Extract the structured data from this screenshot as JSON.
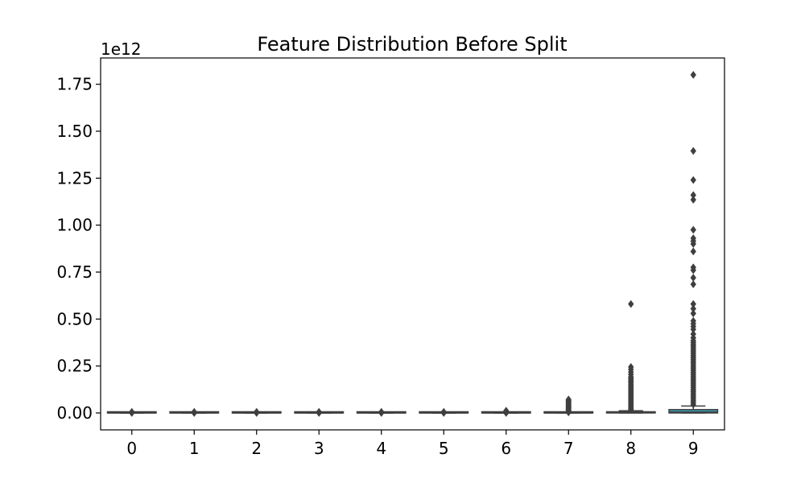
{
  "chart_data": {
    "type": "box",
    "title": "Feature Distribution Before Split",
    "xlabel": "",
    "ylabel": "",
    "y_offset_label": "1e12",
    "y_scale": 1000000000000.0,
    "categories": [
      "0",
      "1",
      "2",
      "3",
      "4",
      "5",
      "6",
      "7",
      "8",
      "9"
    ],
    "ylim": [
      -0.09,
      1.89
    ],
    "yticks": [
      0.0,
      0.25,
      0.5,
      0.75,
      1.0,
      1.25,
      1.5,
      1.75
    ],
    "ytick_labels": [
      "0.00",
      "0.25",
      "0.50",
      "0.75",
      "1.00",
      "1.25",
      "1.50",
      "1.75"
    ],
    "grid": false,
    "legend": "none",
    "colors": {
      "box_fill": "#3b9ab2",
      "box_edge": "#3f3f3f",
      "outlier": "#3f3f3f"
    },
    "boxes": [
      {
        "category": "0",
        "q1": 0.0,
        "median": 0.0,
        "q3": 0.0,
        "whisker_low": 0.0,
        "whisker_high": 0.0,
        "outliers": [
          0.0,
          0.003,
          0.006
        ]
      },
      {
        "category": "1",
        "q1": 0.0,
        "median": 0.0,
        "q3": 0.0,
        "whisker_low": 0.0,
        "whisker_high": 0.0,
        "outliers": [
          0.0,
          0.003,
          0.006
        ]
      },
      {
        "category": "2",
        "q1": 0.0,
        "median": 0.0,
        "q3": 0.0,
        "whisker_low": 0.0,
        "whisker_high": 0.0,
        "outliers": [
          0.0,
          0.003,
          0.006
        ]
      },
      {
        "category": "3",
        "q1": 0.0,
        "median": 0.0,
        "q3": 0.0,
        "whisker_low": 0.0,
        "whisker_high": 0.0,
        "outliers": [
          0.0,
          0.003,
          0.006
        ]
      },
      {
        "category": "4",
        "q1": 0.0,
        "median": 0.0,
        "q3": 0.0,
        "whisker_low": 0.0,
        "whisker_high": 0.0,
        "outliers": [
          0.0,
          0.003,
          0.006
        ]
      },
      {
        "category": "5",
        "q1": 0.0,
        "median": 0.0,
        "q3": 0.0,
        "whisker_low": 0.0,
        "whisker_high": 0.0,
        "outliers": [
          0.0,
          0.003,
          0.006
        ]
      },
      {
        "category": "6",
        "q1": 0.0,
        "median": 0.0,
        "q3": 0.0,
        "whisker_low": 0.0,
        "whisker_high": 0.0,
        "outliers": [
          0.0,
          0.004,
          0.008,
          0.012
        ]
      },
      {
        "category": "7",
        "q1": 0.0,
        "median": 0.0,
        "q3": 0.0,
        "whisker_low": 0.0,
        "whisker_high": 0.001,
        "outliers": [
          0.003,
          0.006,
          0.01,
          0.014,
          0.018,
          0.022,
          0.027,
          0.032,
          0.037,
          0.042,
          0.047,
          0.052,
          0.057,
          0.062,
          0.067,
          0.072
        ]
      },
      {
        "category": "8",
        "q1": 0.0,
        "median": 0.002,
        "q3": 0.005,
        "whisker_low": 0.0,
        "whisker_high": 0.012,
        "outliers": [
          0.018,
          0.025,
          0.032,
          0.04,
          0.048,
          0.056,
          0.064,
          0.072,
          0.08,
          0.088,
          0.096,
          0.104,
          0.112,
          0.12,
          0.128,
          0.136,
          0.144,
          0.152,
          0.16,
          0.168,
          0.176,
          0.184,
          0.192,
          0.205,
          0.218,
          0.232,
          0.245,
          0.58
        ]
      },
      {
        "category": "9",
        "q1": 0.0,
        "median": 0.005,
        "q3": 0.018,
        "whisker_low": 0.0,
        "whisker_high": 0.037,
        "outliers": [
          0.045,
          0.055,
          0.065,
          0.075,
          0.085,
          0.095,
          0.105,
          0.115,
          0.125,
          0.135,
          0.145,
          0.155,
          0.165,
          0.175,
          0.185,
          0.195,
          0.205,
          0.215,
          0.225,
          0.235,
          0.245,
          0.255,
          0.265,
          0.275,
          0.285,
          0.295,
          0.305,
          0.315,
          0.325,
          0.335,
          0.345,
          0.355,
          0.365,
          0.375,
          0.385,
          0.4,
          0.42,
          0.445,
          0.46,
          0.475,
          0.49,
          0.53,
          0.555,
          0.58,
          0.685,
          0.72,
          0.76,
          0.775,
          0.86,
          0.9,
          0.915,
          0.93,
          0.975,
          1.135,
          1.16,
          1.24,
          1.395,
          1.8
        ]
      }
    ]
  }
}
